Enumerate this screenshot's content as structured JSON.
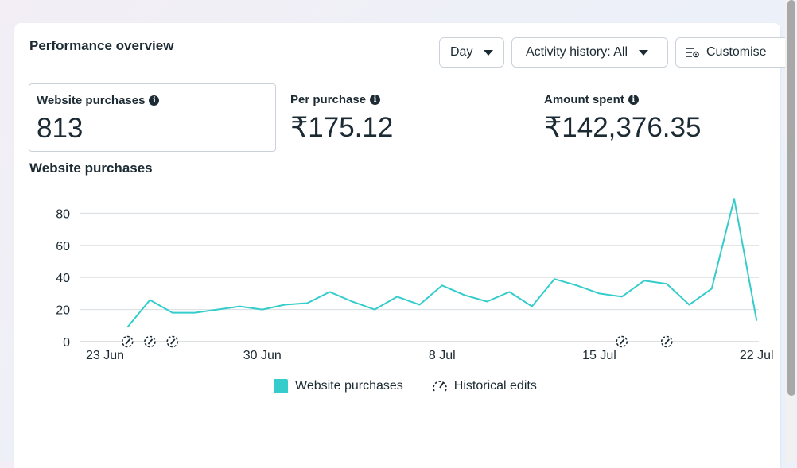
{
  "panel": {
    "title": "Performance overview",
    "buttons": {
      "day": "Day",
      "activity": "Activity history: All",
      "customise": "Customise"
    },
    "metrics": [
      {
        "label": "Website purchases",
        "value": "813"
      },
      {
        "label": "Per purchase",
        "value": "₹175.12"
      },
      {
        "label": "Amount spent",
        "value": "₹142,376.35"
      }
    ],
    "chart_title": "Website purchases"
  },
  "legend": {
    "series": "Website purchases",
    "edits": "Historical edits"
  },
  "colors": {
    "series": "#35cccc",
    "text": "#1c2b33",
    "grid": "#dadde1"
  },
  "chart_data": {
    "type": "line",
    "ylim": [
      0,
      90
    ],
    "yticks": [
      0,
      20,
      40,
      60,
      80
    ],
    "xticks": [
      {
        "day": 0,
        "label": "23 Jun"
      },
      {
        "day": 7,
        "label": "30 Jun"
      },
      {
        "day": 15,
        "label": "8 Jul"
      },
      {
        "day": 22,
        "label": "15 Jul"
      },
      {
        "day": 29,
        "label": "22 Jul"
      }
    ],
    "series": [
      {
        "name": "Website purchases",
        "x": [
          1,
          2,
          3,
          4,
          5,
          6,
          7,
          8,
          9,
          10,
          11,
          12,
          13,
          14,
          15,
          16,
          17,
          18,
          19,
          20,
          21,
          22,
          23,
          24,
          25,
          26,
          27,
          28,
          29
        ],
        "values": [
          9,
          26,
          18,
          18,
          20,
          22,
          20,
          23,
          24,
          31,
          25,
          20,
          28,
          23,
          35,
          29,
          25,
          31,
          22,
          39,
          35,
          30,
          28,
          38,
          36,
          23,
          33,
          89,
          13
        ]
      }
    ],
    "historical_edit_days": [
      1,
      2,
      3,
      23,
      25
    ]
  }
}
